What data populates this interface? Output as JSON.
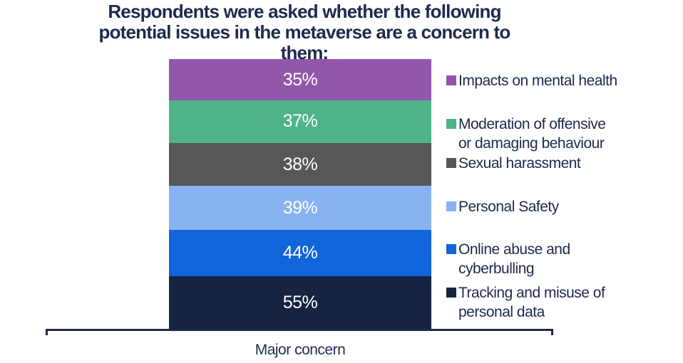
{
  "page": {
    "background": "#ffffff"
  },
  "title_lines": [
    "Respondents were asked whether the following",
    "potential issues in the metaverse are a concern to",
    "them:"
  ],
  "chart_data": {
    "type": "bar",
    "variant": "stacked-column-single-category",
    "title": "Respondents were asked whether the following potential issues in the metaverse are a concern to them:",
    "categories": [
      "Major concern"
    ],
    "xlabel": "Major concern",
    "value_format": "percent",
    "legend_position": "right",
    "grid": false,
    "text_color": "#1d2a4e",
    "axis_color": "#1d2a4e",
    "data_label_color": "#ffffff",
    "series": [
      {
        "name": "Impacts on mental health",
        "values": [
          35
        ],
        "data_label": "35%",
        "color": "#9257ab",
        "legend_lines": [
          "Impacts on mental health"
        ]
      },
      {
        "name": "Moderation of offensive or damaging behaviour",
        "values": [
          37
        ],
        "data_label": "37%",
        "color": "#4fb389",
        "legend_lines": [
          "Moderation of offensive",
          "or damaging behaviour"
        ]
      },
      {
        "name": "Sexual harassment",
        "values": [
          38
        ],
        "data_label": "38%",
        "color": "#575757",
        "legend_lines": [
          "Sexual harassment"
        ]
      },
      {
        "name": "Personal Safety",
        "values": [
          39
        ],
        "data_label": "39%",
        "color": "#89b2f3",
        "legend_lines": [
          "Personal Safety"
        ]
      },
      {
        "name": "Online abuse and cyberbulling",
        "values": [
          44
        ],
        "data_label": "44%",
        "color": "#1164d9",
        "legend_lines": [
          "Online abuse and",
          "cyberbulling"
        ]
      },
      {
        "name": "Tracking and misuse of personal data",
        "values": [
          55
        ],
        "data_label": "55%",
        "color": "#162441",
        "legend_lines": [
          "Tracking and misuse of",
          "personal data"
        ]
      }
    ]
  }
}
